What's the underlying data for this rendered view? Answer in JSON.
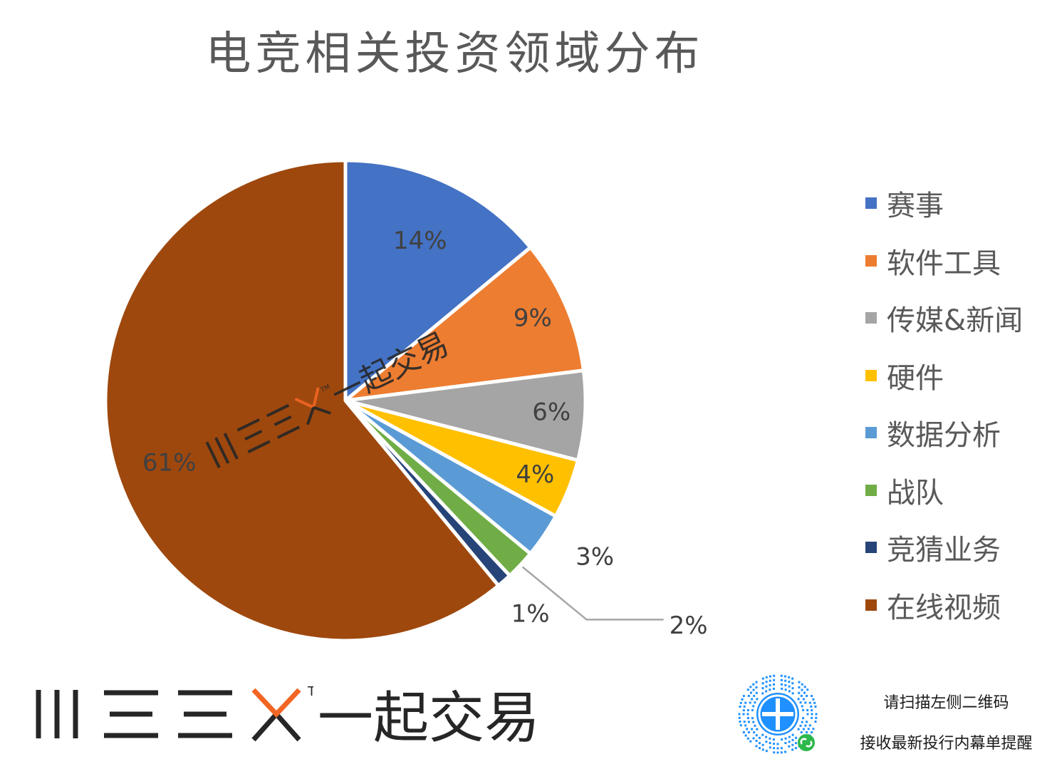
{
  "title": "电竞相关投资领域分布",
  "chart_data": {
    "type": "pie",
    "title": "电竞相关投资领域分布",
    "categories": [
      "赛事",
      "软件工具",
      "传媒&新闻",
      "硬件",
      "数据分析",
      "战队",
      "竞猜业务",
      "在线视频"
    ],
    "values": [
      14,
      9,
      6,
      4,
      3,
      2,
      1,
      61
    ],
    "labels": [
      "14%",
      "9%",
      "6%",
      "4%",
      "3%",
      "2%",
      "1%",
      "61%"
    ],
    "unit": "%",
    "colors": [
      "#4472C4",
      "#ED7D31",
      "#A5A5A5",
      "#FFC000",
      "#5B9BD5",
      "#70AD47",
      "#264478",
      "#9E480E"
    ],
    "legend_position": "right"
  },
  "watermark": {
    "text": "一起交易",
    "tm": "TM"
  },
  "footer": {
    "logo_text": "一起交易",
    "logo_tm": "TM",
    "qr_icon": "mini-program-qr-icon",
    "caption_line1": "请扫描左侧二维码",
    "caption_line2": "接收最新投行内幕单提醒"
  }
}
